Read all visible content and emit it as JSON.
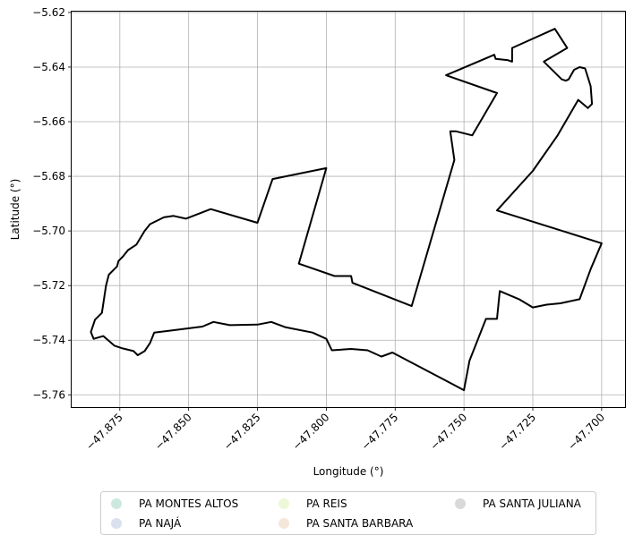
{
  "chart_data": {
    "type": "map",
    "xlabel": "Longitude (°)",
    "ylabel": "Latitude (°)",
    "xlim": [
      -47.8925,
      -47.6915
    ],
    "ylim": [
      -5.7645,
      -5.6197
    ],
    "x_ticks": [
      -47.875,
      -47.85,
      -47.825,
      -47.8,
      -47.775,
      -47.75,
      -47.725,
      -47.7
    ],
    "x_tick_labels": [
      "−47.875",
      "−47.850",
      "−47.825",
      "−47.800",
      "−47.775",
      "−47.750",
      "−47.725",
      "−47.700"
    ],
    "y_ticks": [
      -5.62,
      -5.64,
      -5.66,
      -5.68,
      -5.7,
      -5.72,
      -5.74,
      -5.76
    ],
    "y_tick_labels": [
      "−5.62",
      "−5.64",
      "−5.66",
      "−5.68",
      "−5.70",
      "−5.72",
      "−5.74",
      "−5.76"
    ],
    "grid": true,
    "outline_color": "#000000",
    "boundary": [
      [
        -47.8625,
        -5.7372
      ],
      [
        -47.855,
        -5.7363
      ],
      [
        -47.845,
        -5.735
      ],
      [
        -47.841,
        -5.7333
      ],
      [
        -47.835,
        -5.7345
      ],
      [
        -47.825,
        -5.7343
      ],
      [
        -47.82,
        -5.7333
      ],
      [
        -47.815,
        -5.7352
      ],
      [
        -47.805,
        -5.7372
      ],
      [
        -47.8,
        -5.7395
      ],
      [
        -47.798,
        -5.7437
      ],
      [
        -47.791,
        -5.7432
      ],
      [
        -47.785,
        -5.7437
      ],
      [
        -47.78,
        -5.746
      ],
      [
        -47.776,
        -5.7445
      ],
      [
        -47.75,
        -5.7583
      ],
      [
        -47.748,
        -5.7475
      ],
      [
        -47.742,
        -5.7322
      ],
      [
        -47.738,
        -5.7322
      ],
      [
        -47.737,
        -5.722
      ],
      [
        -47.73,
        -5.725
      ],
      [
        -47.725,
        -5.728
      ],
      [
        -47.72,
        -5.727
      ],
      [
        -47.715,
        -5.7265
      ],
      [
        -47.708,
        -5.725
      ],
      [
        -47.704,
        -5.714
      ],
      [
        -47.7,
        -5.7045
      ],
      [
        -47.738,
        -5.6925
      ],
      [
        -47.725,
        -5.678
      ],
      [
        -47.716,
        -5.665
      ],
      [
        -47.7085,
        -5.652
      ],
      [
        -47.705,
        -5.655
      ],
      [
        -47.7035,
        -5.6535
      ],
      [
        -47.704,
        -5.647
      ],
      [
        -47.706,
        -5.6405
      ],
      [
        -47.708,
        -5.64
      ],
      [
        -47.71,
        -5.641
      ],
      [
        -47.712,
        -5.6445
      ],
      [
        -47.713,
        -5.645
      ],
      [
        -47.7145,
        -5.6445
      ],
      [
        -47.721,
        -5.638
      ],
      [
        -47.7125,
        -5.633
      ],
      [
        -47.717,
        -5.626
      ],
      [
        -47.7325,
        -5.633
      ],
      [
        -47.7325,
        -5.638
      ],
      [
        -47.734,
        -5.6375
      ],
      [
        -47.7385,
        -5.637
      ],
      [
        -47.739,
        -5.6355
      ],
      [
        -47.7565,
        -5.643
      ],
      [
        -47.738,
        -5.6495
      ],
      [
        -47.747,
        -5.665
      ],
      [
        -47.753,
        -5.6635
      ],
      [
        -47.755,
        -5.6635
      ],
      [
        -47.7535,
        -5.674
      ],
      [
        -47.769,
        -5.7275
      ],
      [
        -47.7905,
        -5.719
      ],
      [
        -47.791,
        -5.7165
      ],
      [
        -47.797,
        -5.7165
      ],
      [
        -47.81,
        -5.712
      ],
      [
        -47.8,
        -5.677
      ],
      [
        -47.8195,
        -5.681
      ],
      [
        -47.825,
        -5.697
      ],
      [
        -47.842,
        -5.692
      ],
      [
        -47.851,
        -5.6955
      ],
      [
        -47.8555,
        -5.6945
      ],
      [
        -47.859,
        -5.695
      ],
      [
        -47.864,
        -5.6975
      ],
      [
        -47.866,
        -5.7
      ],
      [
        -47.869,
        -5.705
      ],
      [
        -47.872,
        -5.707
      ],
      [
        -47.874,
        -5.7095
      ],
      [
        -47.8755,
        -5.711
      ],
      [
        -47.876,
        -5.713
      ],
      [
        -47.879,
        -5.716
      ],
      [
        -47.88,
        -5.72
      ],
      [
        -47.8815,
        -5.73
      ],
      [
        -47.884,
        -5.7325
      ],
      [
        -47.8855,
        -5.737
      ],
      [
        -47.8845,
        -5.7395
      ],
      [
        -47.881,
        -5.7385
      ],
      [
        -47.877,
        -5.742
      ],
      [
        -47.874,
        -5.743
      ],
      [
        -47.87,
        -5.744
      ],
      [
        -47.8685,
        -5.7455
      ],
      [
        -47.866,
        -5.744
      ],
      [
        -47.864,
        -5.741
      ],
      [
        -47.8625,
        -5.7372
      ]
    ],
    "legend": {
      "placement": "bottom-center",
      "entries": [
        {
          "label": "PA MONTES ALTOS",
          "color": "#cde9df"
        },
        {
          "label": "PA NAJÁ",
          "color": "#dbe0ee"
        },
        {
          "label": "PA REIS",
          "color": "#eef7d8"
        },
        {
          "label": "PA SANTA BARBARA",
          "color": "#f5e6da"
        },
        {
          "label": "PA SANTA JULIANA",
          "color": "#d9d9d9"
        }
      ]
    }
  }
}
